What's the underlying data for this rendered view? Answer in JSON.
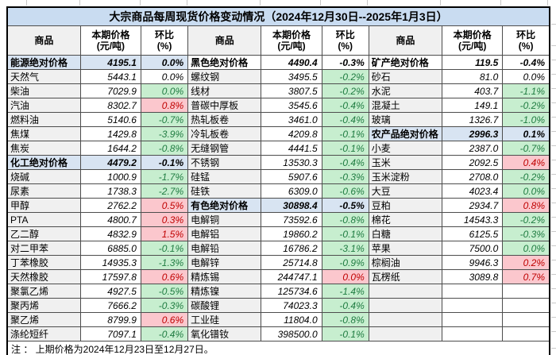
{
  "chart_data": {
    "type": "table",
    "title": "大宗商品每周现货价格变动情况（2024年12月30日--2025年1月3日）",
    "columns": {
      "commodity": "商品",
      "price_line1": "本期价格",
      "price_line2": "(元/吨)",
      "pct_line1": "环比",
      "pct_line2": "(%)"
    },
    "note": "注 ： 上期价格为2024年12月23日至12月27日。",
    "colors": {
      "title_bg": "#C9DCF1",
      "cat_blue": "#D8E4F2",
      "name_gray": "#F0F0F0",
      "green_bg": "#C7EECF",
      "green_text": "#1F7C41",
      "red_bg": "#FBC7CD",
      "red_text": "#C00000"
    },
    "groups": [
      [
        {
          "name": "能源绝对价格",
          "price": "4195.1",
          "pct": "0.0%",
          "row_style": "blue_header",
          "pct_style": "header"
        },
        {
          "name": "天然气",
          "price": "5443.1",
          "pct": "0.0%",
          "row_style": "item",
          "pct_style": "plain"
        },
        {
          "name": "柴油",
          "price": "7029.9",
          "pct": "0.0%",
          "row_style": "item",
          "pct_style": "green"
        },
        {
          "name": "汽油",
          "price": "8302.7",
          "pct": "0.8%",
          "row_style": "item",
          "pct_style": "red"
        },
        {
          "name": "燃料油",
          "price": "5140.6",
          "pct": "-0.7%",
          "row_style": "item",
          "pct_style": "green"
        },
        {
          "name": "焦煤",
          "price": "1429.8",
          "pct": "-3.9%",
          "row_style": "item",
          "pct_style": "green"
        },
        {
          "name": "焦炭",
          "price": "1644.2",
          "pct": "-0.8%",
          "row_style": "item",
          "pct_style": "green"
        },
        {
          "name": "化工绝对价格",
          "price": "4479.2",
          "pct": "-0.1%",
          "row_style": "blue_header",
          "pct_style": "header"
        },
        {
          "name": "烧碱",
          "price": "1000.9",
          "pct": "-1.7%",
          "row_style": "item",
          "pct_style": "green"
        },
        {
          "name": "尿素",
          "price": "1738.3",
          "pct": "-2.7%",
          "row_style": "item",
          "pct_style": "green"
        },
        {
          "name": "甲醇",
          "price": "2762.2",
          "pct": "0.5%",
          "row_style": "item",
          "pct_style": "red"
        },
        {
          "name": "PTA",
          "price": "4800.7",
          "pct": "0.3%",
          "row_style": "item",
          "pct_style": "red"
        },
        {
          "name": "乙二醇",
          "price": "4832.9",
          "pct": "1.5%",
          "row_style": "item",
          "pct_style": "red"
        },
        {
          "name": "对二甲苯",
          "price": "6885.0",
          "pct": "-0.1%",
          "row_style": "item",
          "pct_style": "green"
        },
        {
          "name": "丁苯橡胶",
          "price": "14935.3",
          "pct": "-1.3%",
          "row_style": "item",
          "pct_style": "green"
        },
        {
          "name": "天然橡胶",
          "price": "17597.8",
          "pct": "0.6%",
          "row_style": "item",
          "pct_style": "red"
        },
        {
          "name": "聚氯乙烯",
          "price": "4927.5",
          "pct": "-0.5%",
          "row_style": "item",
          "pct_style": "green"
        },
        {
          "name": "聚丙烯",
          "price": "7666.2",
          "pct": "-0.3%",
          "row_style": "item",
          "pct_style": "green"
        },
        {
          "name": "聚乙烯",
          "price": "8799.9",
          "pct": "0.6%",
          "row_style": "item",
          "pct_style": "red"
        },
        {
          "name": "涤纶短纤",
          "price": "7097.1",
          "pct": "-0.4%",
          "row_style": "item",
          "pct_style": "green"
        }
      ],
      [
        {
          "name": "黑色绝对价格",
          "price": "4490.4",
          "pct": "-0.3%",
          "row_style": "plain_header",
          "pct_style": "header"
        },
        {
          "name": "螺纹钢",
          "price": "3495.5",
          "pct": "-0.2%",
          "row_style": "item",
          "pct_style": "green"
        },
        {
          "name": "线材",
          "price": "3807.5",
          "pct": "-0.2%",
          "row_style": "item",
          "pct_style": "green"
        },
        {
          "name": "普碳中厚板",
          "price": "3545.6",
          "pct": "-0.4%",
          "row_style": "item",
          "pct_style": "green"
        },
        {
          "name": "热轧板卷",
          "price": "3461.0",
          "pct": "-0.4%",
          "row_style": "item",
          "pct_style": "green"
        },
        {
          "name": "冷轧板卷",
          "price": "4209.8",
          "pct": "-0.1%",
          "row_style": "item",
          "pct_style": "green"
        },
        {
          "name": "无缝钢管",
          "price": "4441.5",
          "pct": "-0.1%",
          "row_style": "item",
          "pct_style": "green"
        },
        {
          "name": "不锈钢",
          "price": "13530.3",
          "pct": "-0.4%",
          "row_style": "item",
          "pct_style": "green"
        },
        {
          "name": "硅锰",
          "price": "5907.6",
          "pct": "-0.3%",
          "row_style": "item",
          "pct_style": "green"
        },
        {
          "name": "硅铁",
          "price": "6309.0",
          "pct": "-0.6%",
          "row_style": "item",
          "pct_style": "green"
        },
        {
          "name": "有色绝对价格",
          "price": "30898.4",
          "pct": "-0.5%",
          "row_style": "blue_header",
          "pct_style": "header"
        },
        {
          "name": "电解铜",
          "price": "73592.6",
          "pct": "-0.8%",
          "row_style": "item",
          "pct_style": "green"
        },
        {
          "name": "电解铝",
          "price": "19860.2",
          "pct": "-0.1%",
          "row_style": "item",
          "pct_style": "green"
        },
        {
          "name": "电解铅",
          "price": "16786.2",
          "pct": "-3.1%",
          "row_style": "item",
          "pct_style": "green"
        },
        {
          "name": "电解锌",
          "price": "25714.8",
          "pct": "-0.9%",
          "row_style": "item",
          "pct_style": "green"
        },
        {
          "name": "精炼锡",
          "price": "244747.1",
          "pct": "0.0%",
          "row_style": "item",
          "pct_style": "red"
        },
        {
          "name": "精炼镍",
          "price": "125734.6",
          "pct": "-1.4%",
          "row_style": "item",
          "pct_style": "green"
        },
        {
          "name": "碳酸锂",
          "price": "74023.3",
          "pct": "-0.4%",
          "row_style": "item",
          "pct_style": "green"
        },
        {
          "name": "工业硅",
          "price": "11804.0",
          "pct": "-0.8%",
          "row_style": "item",
          "pct_style": "green"
        },
        {
          "name": "氧化镨钕",
          "price": "398500.0",
          "pct": "-0.1%",
          "row_style": "item",
          "pct_style": "green"
        }
      ],
      [
        {
          "name": "矿产绝对价格",
          "price": "119.5",
          "pct": "-0.4%",
          "row_style": "plain_header",
          "pct_style": "header"
        },
        {
          "name": "砂石",
          "price": "81.0",
          "pct": "0.0%",
          "row_style": "item",
          "pct_style": "plain"
        },
        {
          "name": "水泥",
          "price": "403.7",
          "pct": "-1.1%",
          "row_style": "item",
          "pct_style": "green"
        },
        {
          "name": "混凝土",
          "price": "149.1",
          "pct": "-0.2%",
          "row_style": "item",
          "pct_style": "green"
        },
        {
          "name": "玻璃",
          "price": "1326.7",
          "pct": "-1.0%",
          "row_style": "item",
          "pct_style": "green"
        },
        {
          "name": "农产品绝对价格",
          "price": "2996.3",
          "pct": "0.1%",
          "row_style": "blue_header",
          "pct_style": "header"
        },
        {
          "name": "小麦",
          "price": "2387.0",
          "pct": "-0.7%",
          "row_style": "item",
          "pct_style": "green"
        },
        {
          "name": "玉米",
          "price": "2092.5",
          "pct": "0.4%",
          "row_style": "item",
          "pct_style": "red"
        },
        {
          "name": "玉米淀粉",
          "price": "2708.0",
          "pct": "-0.2%",
          "row_style": "item",
          "pct_style": "green"
        },
        {
          "name": "大豆",
          "price": "4023.4",
          "pct": "0.0%",
          "row_style": "item",
          "pct_style": "green"
        },
        {
          "name": "豆粕",
          "price": "2934.7",
          "pct": "0.8%",
          "row_style": "item",
          "pct_style": "red"
        },
        {
          "name": "棉花",
          "price": "14543.3",
          "pct": "-0.2%",
          "row_style": "item",
          "pct_style": "green"
        },
        {
          "name": "白糖",
          "price": "6125.5",
          "pct": "-0.3%",
          "row_style": "item",
          "pct_style": "green"
        },
        {
          "name": "苹果",
          "price": "7500.0",
          "pct": "0.0%",
          "row_style": "item",
          "pct_style": "green"
        },
        {
          "name": "棕榈油",
          "price": "9946.3",
          "pct": "0.2%",
          "row_style": "item",
          "pct_style": "red"
        },
        {
          "name": "瓦楞纸",
          "price": "3089.8",
          "pct": "0.7%",
          "row_style": "item",
          "pct_style": "red"
        },
        {
          "name": "",
          "price": "",
          "pct": "",
          "row_style": "item",
          "pct_style": "plain"
        },
        {
          "name": "",
          "price": "",
          "pct": "",
          "row_style": "item",
          "pct_style": "plain"
        },
        {
          "name": "",
          "price": "",
          "pct": "",
          "row_style": "item",
          "pct_style": "plain"
        },
        {
          "name": "",
          "price": "",
          "pct": "",
          "row_style": "item",
          "pct_style": "plain"
        }
      ]
    ]
  }
}
